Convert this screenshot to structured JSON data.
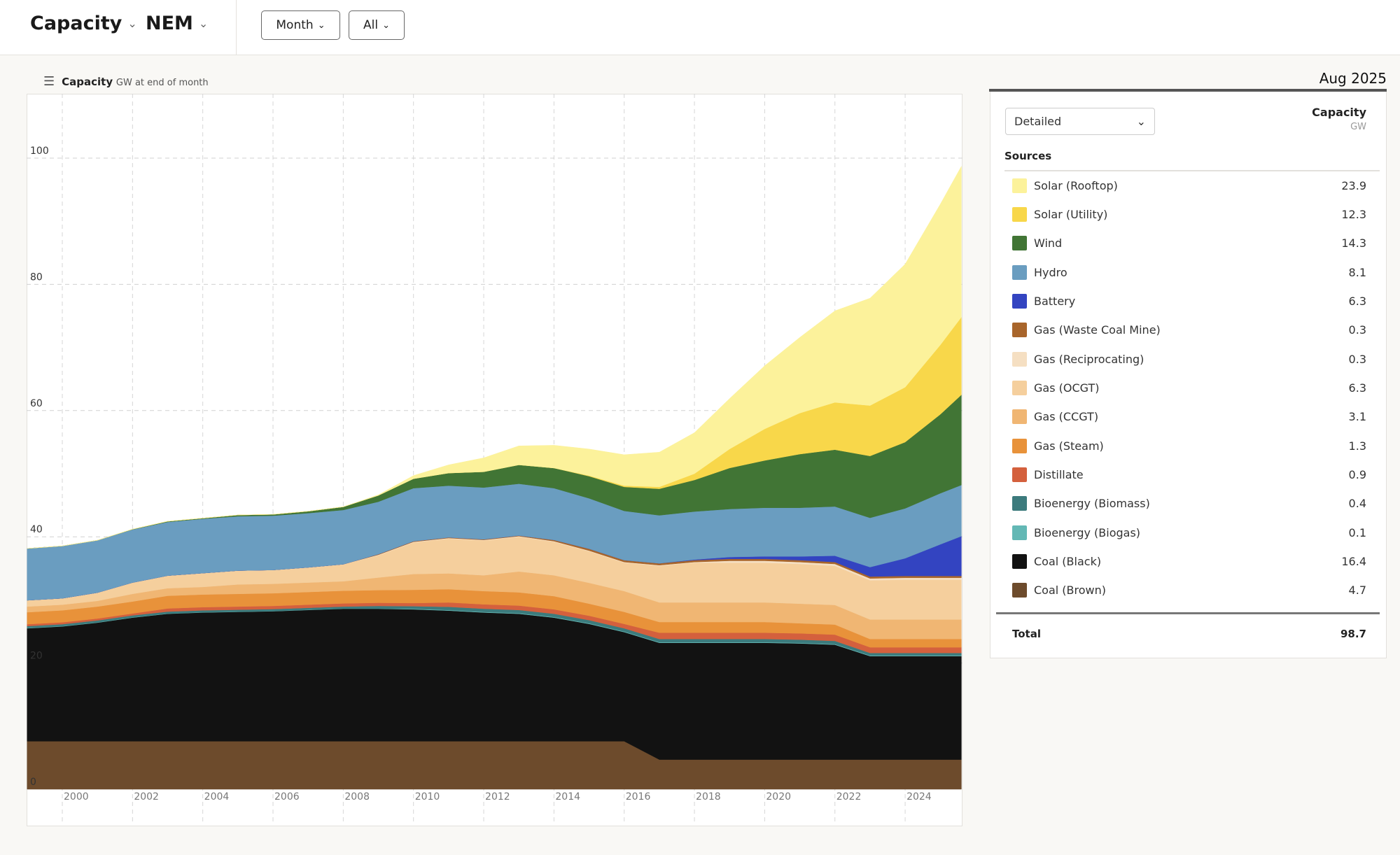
{
  "header": {
    "metric_label": "Capacity",
    "region_label": "NEM",
    "interval_button": "Month",
    "range_button": "All"
  },
  "chart_header": {
    "title": "Capacity",
    "subtitle": "GW at end of month"
  },
  "legend": {
    "date": "Aug 2025",
    "view_select": "Detailed",
    "column_title": "Capacity",
    "column_unit": "GW",
    "sources_label": "Sources",
    "total_label": "Total",
    "total_value": "98.7",
    "items": [
      {
        "label": "Solar (Rooftop)",
        "value": "23.9",
        "color": "#FCF29B"
      },
      {
        "label": "Solar (Utility)",
        "value": "12.3",
        "color": "#F8D74A"
      },
      {
        "label": "Wind",
        "value": "14.3",
        "color": "#417535"
      },
      {
        "label": "Hydro",
        "value": "8.1",
        "color": "#6A9DC0"
      },
      {
        "label": "Battery",
        "value": "6.3",
        "color": "#3344C1"
      },
      {
        "label": "Gas (Waste Coal Mine)",
        "value": "0.3",
        "color": "#A8652B"
      },
      {
        "label": "Gas (Reciprocating)",
        "value": "0.3",
        "color": "#F5DFC2"
      },
      {
        "label": "Gas (OCGT)",
        "value": "6.3",
        "color": "#F5CF9D"
      },
      {
        "label": "Gas (CCGT)",
        "value": "3.1",
        "color": "#F0B673"
      },
      {
        "label": "Gas (Steam)",
        "value": "1.3",
        "color": "#E8923A"
      },
      {
        "label": "Distillate",
        "value": "0.9",
        "color": "#D4603D"
      },
      {
        "label": "Bioenergy (Biomass)",
        "value": "0.4",
        "color": "#3C7B7D"
      },
      {
        "label": "Bioenergy (Biogas)",
        "value": "0.1",
        "color": "#63B8B5"
      },
      {
        "label": "Coal (Black)",
        "value": "16.4",
        "color": "#121212"
      },
      {
        "label": "Coal (Brown)",
        "value": "4.7",
        "color": "#6D4B2C"
      }
    ]
  },
  "chart_data": {
    "type": "area",
    "stacked": true,
    "title": "Capacity",
    "ylabel": "GW at end of month",
    "ylim": [
      0,
      110
    ],
    "xlim": [
      1999.0,
      2025.6
    ],
    "yticks": [
      0,
      20,
      40,
      60,
      80,
      100
    ],
    "xticks": [
      2000,
      2002,
      2004,
      2006,
      2008,
      2010,
      2012,
      2014,
      2016,
      2018,
      2020,
      2022,
      2024
    ],
    "grid": true,
    "x": [
      1999,
      2000,
      2001,
      2002,
      2003,
      2004,
      2005,
      2006,
      2007,
      2008,
      2009,
      2010,
      2011,
      2012,
      2013,
      2014,
      2015,
      2016,
      2017,
      2018,
      2019,
      2020,
      2021,
      2022,
      2023,
      2024,
      2025,
      2025.6
    ],
    "series": [
      {
        "name": "Coal (Brown)",
        "color": "#6D4B2C",
        "values": [
          7.6,
          7.6,
          7.6,
          7.6,
          7.6,
          7.6,
          7.6,
          7.6,
          7.6,
          7.6,
          7.6,
          7.6,
          7.6,
          7.6,
          7.6,
          7.6,
          7.6,
          7.6,
          4.7,
          4.7,
          4.7,
          4.7,
          4.7,
          4.7,
          4.7,
          4.7,
          4.7,
          4.7
        ]
      },
      {
        "name": "Coal (Black)",
        "color": "#121212",
        "values": [
          17.9,
          18.2,
          18.8,
          19.6,
          20.2,
          20.4,
          20.5,
          20.6,
          20.8,
          21.0,
          21.0,
          20.9,
          20.7,
          20.4,
          20.2,
          19.6,
          18.6,
          17.3,
          18.5,
          18.5,
          18.5,
          18.5,
          18.4,
          18.2,
          16.4,
          16.4,
          16.4,
          16.4
        ]
      },
      {
        "name": "Bioenergy (Biogas)",
        "color": "#63B8B5",
        "values": [
          0.05,
          0.05,
          0.05,
          0.05,
          0.05,
          0.05,
          0.05,
          0.05,
          0.05,
          0.05,
          0.05,
          0.1,
          0.1,
          0.1,
          0.1,
          0.1,
          0.1,
          0.1,
          0.1,
          0.1,
          0.1,
          0.1,
          0.1,
          0.1,
          0.1,
          0.1,
          0.1,
          0.1
        ]
      },
      {
        "name": "Bioenergy (Biomass)",
        "color": "#3C7B7D",
        "values": [
          0.3,
          0.3,
          0.3,
          0.3,
          0.3,
          0.3,
          0.3,
          0.3,
          0.3,
          0.3,
          0.4,
          0.4,
          0.5,
          0.5,
          0.5,
          0.5,
          0.5,
          0.5,
          0.5,
          0.5,
          0.5,
          0.5,
          0.5,
          0.5,
          0.4,
          0.4,
          0.4,
          0.4
        ]
      },
      {
        "name": "Distillate",
        "color": "#D4603D",
        "values": [
          0.3,
          0.3,
          0.3,
          0.3,
          0.5,
          0.5,
          0.5,
          0.5,
          0.5,
          0.5,
          0.5,
          0.5,
          0.7,
          0.7,
          0.7,
          0.7,
          0.7,
          0.7,
          1.0,
          1.0,
          1.0,
          1.0,
          1.0,
          1.0,
          0.9,
          0.9,
          0.9,
          0.9
        ]
      },
      {
        "name": "Gas (Steam)",
        "color": "#E8923A",
        "values": [
          1.9,
          1.9,
          1.9,
          1.9,
          2.0,
          2.0,
          2.0,
          2.0,
          2.0,
          2.0,
          2.0,
          2.1,
          2.1,
          2.1,
          2.1,
          2.1,
          1.9,
          1.9,
          1.7,
          1.7,
          1.7,
          1.7,
          1.6,
          1.6,
          1.3,
          1.3,
          1.3,
          1.3
        ]
      },
      {
        "name": "Gas (CCGT)",
        "color": "#F0B673",
        "values": [
          0.9,
          0.9,
          0.9,
          1.2,
          1.2,
          1.2,
          1.5,
          1.5,
          1.5,
          1.5,
          2.0,
          2.5,
          2.5,
          2.5,
          3.3,
          3.3,
          3.3,
          3.3,
          3.1,
          3.1,
          3.1,
          3.1,
          3.1,
          3.1,
          3.1,
          3.1,
          3.1,
          3.1
        ]
      },
      {
        "name": "Gas (OCGT)",
        "color": "#F5CF9D",
        "values": [
          1.0,
          1.0,
          1.3,
          1.8,
          2.0,
          2.2,
          2.2,
          2.2,
          2.4,
          2.7,
          3.5,
          5.0,
          5.5,
          5.5,
          5.5,
          5.3,
          5.0,
          4.5,
          5.8,
          6.3,
          6.3,
          6.3,
          6.3,
          6.2,
          6.2,
          6.3,
          6.3,
          6.3
        ]
      },
      {
        "name": "Gas (Reciprocating)",
        "color": "#F5DFC2",
        "values": [
          0,
          0,
          0,
          0,
          0,
          0,
          0,
          0,
          0,
          0,
          0.1,
          0.1,
          0.1,
          0.1,
          0.1,
          0.1,
          0.1,
          0.1,
          0.1,
          0.1,
          0.3,
          0.3,
          0.3,
          0.3,
          0.3,
          0.3,
          0.3,
          0.3
        ]
      },
      {
        "name": "Gas (Waste Coal Mine)",
        "color": "#A8652B",
        "values": [
          0,
          0,
          0,
          0,
          0,
          0,
          0,
          0,
          0,
          0,
          0.1,
          0.1,
          0.1,
          0.1,
          0.1,
          0.2,
          0.3,
          0.3,
          0.3,
          0.3,
          0.3,
          0.3,
          0.3,
          0.3,
          0.3,
          0.3,
          0.3,
          0.3
        ]
      },
      {
        "name": "Battery",
        "color": "#3344C1",
        "values": [
          0,
          0,
          0,
          0,
          0,
          0,
          0,
          0,
          0,
          0,
          0,
          0,
          0,
          0,
          0,
          0,
          0,
          0,
          0,
          0.1,
          0.3,
          0.4,
          0.6,
          1.0,
          1.5,
          2.8,
          5.0,
          6.3
        ]
      },
      {
        "name": "Hydro",
        "color": "#6A9DC0",
        "values": [
          8.2,
          8.3,
          8.3,
          8.4,
          8.5,
          8.6,
          8.6,
          8.6,
          8.6,
          8.6,
          8.3,
          8.4,
          8.2,
          8.2,
          8.2,
          8.2,
          8.0,
          7.8,
          7.6,
          7.6,
          7.6,
          7.7,
          7.7,
          7.8,
          7.8,
          7.9,
          8.1,
          8.1
        ]
      },
      {
        "name": "Wind",
        "color": "#417535",
        "values": [
          0,
          0,
          0,
          0.05,
          0.1,
          0.1,
          0.2,
          0.2,
          0.3,
          0.5,
          1.0,
          1.5,
          2.0,
          2.5,
          3.0,
          3.2,
          3.5,
          3.8,
          4.2,
          5.0,
          6.5,
          7.5,
          8.5,
          9.0,
          9.8,
          10.5,
          12.5,
          14.3
        ]
      },
      {
        "name": "Solar (Utility)",
        "color": "#F8D74A",
        "values": [
          0,
          0,
          0,
          0,
          0,
          0,
          0,
          0,
          0,
          0,
          0,
          0,
          0,
          0,
          0,
          0,
          0.1,
          0.2,
          0.3,
          1.0,
          3.0,
          5.0,
          6.5,
          7.5,
          8.0,
          8.7,
          11.0,
          12.3
        ]
      },
      {
        "name": "Solar (Rooftop)",
        "color": "#FCF29B",
        "values": [
          0,
          0,
          0,
          0,
          0,
          0,
          0,
          0,
          0,
          0,
          0.1,
          0.5,
          1.3,
          2.2,
          3.0,
          3.6,
          4.2,
          4.9,
          5.5,
          6.5,
          8.0,
          10.0,
          12.0,
          14.5,
          17.0,
          19.5,
          22.3,
          23.9
        ]
      }
    ]
  }
}
